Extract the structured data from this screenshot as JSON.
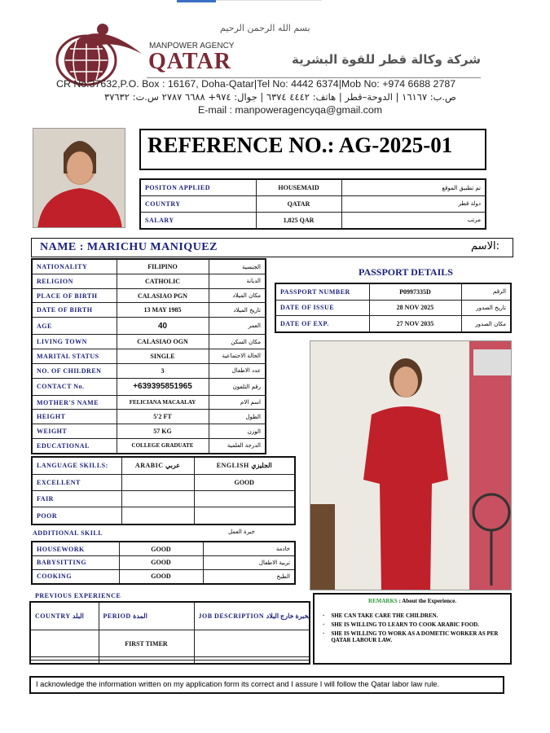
{
  "header": {
    "basmala": "بسم الله الرحمن الرحيم",
    "agency_small": "MANPOWER AGENCY",
    "agency_big": "QATAR",
    "agency_arabic": "شركة وكالة قطر للقوة البشرية",
    "contact_en": "CR No:37632,P.O. Box : 16167, Doha-Qatar|Tel No: 4442 6374|Mob No: +974 6688 2787",
    "contact_ar": "ص.ب: ١٦١٦٧ | الدوحة–قطر | هاتف: ٤٤٤٢ ٦٣٧٤ | جوال: ٩٧٤+ ٦٦٨٨ ٢٧٨٧ س.ت: ٣٧٦٣٢",
    "email": "E-mail : manpoweragencyqa@gmail.com",
    "brand_color": "#7a2a35"
  },
  "reference": "REFERENCE NO.: AG-2025-01",
  "position": [
    {
      "label": "POSITON APPLIED",
      "value": "HOUSEMAID",
      "ar": "تم تطبيق الموقع"
    },
    {
      "label": "COUNTRY",
      "value": "QATAR",
      "ar": "دولة قطر"
    },
    {
      "label": "SALARY",
      "value": "1,825 QAR",
      "ar": "مرتب"
    }
  ],
  "name": {
    "label": "NAME : MARICHU MANIQUEZ",
    "ar": "الاسم:"
  },
  "personal": [
    {
      "label": "NATIONALITY",
      "value": "FILIPINO",
      "ar": "الجنسية"
    },
    {
      "label": "RELIGION",
      "value": "CATHOLIC",
      "ar": "الديانة"
    },
    {
      "label": "PLACE OF BIRTH",
      "value": "CALASIAO PGN",
      "ar": "مكان الميلاد"
    },
    {
      "label": "DATE OF BIRTH",
      "value": "13 MAY 1985",
      "ar": "تاريخ الميلاد"
    },
    {
      "label": "AGE",
      "value": "40",
      "ar": "العمر"
    },
    {
      "label": "LIVING TOWN",
      "value": "CALASIAO OGN",
      "ar": "مكان السكن"
    },
    {
      "label": "MARITAL STATUS",
      "value": "SINGLE",
      "ar": "الحالة الاجتماعية"
    },
    {
      "label": "NO. OF CHILDREN",
      "value": "3",
      "ar": "عدد الاطفال"
    },
    {
      "label": "CONTACT No.",
      "value": "+639395851965",
      "ar": "رقم التلفون"
    },
    {
      "label": "MOTHER'S NAME",
      "value": "FELICIANA MACAALAY",
      "ar": "اسم الام"
    },
    {
      "label": "HEIGHT",
      "value": "5'2 FT",
      "ar": "الطول"
    },
    {
      "label": "WEIGHT",
      "value": "57 KG",
      "ar": "الوزن"
    },
    {
      "label": "EDUCATIONAL",
      "value": "COLLEGE GRADUATE",
      "ar": "الدرجة العلمية"
    }
  ],
  "passport": {
    "title": "PASSPORT DETAILS",
    "rows": [
      {
        "label": "PASSPORT NUMBER",
        "value": "P0997335D",
        "ar": "الرقم"
      },
      {
        "label": "DATE OF ISSUE",
        "value": "28 NOV 2025",
        "ar": "تاريخ الصدور"
      },
      {
        "label": "DATE OF EXP.",
        "value": "27 NOV 2035",
        "ar": "مكان الصدور"
      }
    ]
  },
  "language": {
    "header": {
      "label": "LANGUAGE SKILLS:",
      "arabic": "ARABIC عربي",
      "english": "ENGLISH الجليزي"
    },
    "rows": [
      {
        "label": "EXCELLENT",
        "arabic": "",
        "english": "GOOD"
      },
      {
        "label": "FAIR",
        "arabic": "",
        "english": ""
      },
      {
        "label": "POOR",
        "arabic": "",
        "english": ""
      }
    ]
  },
  "additional": {
    "label": "ADDITIONAL SKILL",
    "ar": "خبرة العمل",
    "rows": [
      {
        "label": "HOUSEWORK",
        "value": "GOOD",
        "ar": "خادمة"
      },
      {
        "label": "BABYSITTING",
        "value": "GOOD",
        "ar": "تربية الاطفال"
      },
      {
        "label": "COOKING",
        "value": "GOOD",
        "ar": "الطبخ"
      }
    ]
  },
  "experience": {
    "label": "PREVIOUS EXPERIENCE",
    "headers": [
      "COUNTRY البلد",
      "PERIOD المدة",
      "JOB DESCRIPTION الخبرة خارج البلاد"
    ],
    "rows": [
      [
        "",
        "FIRST TIMER",
        ""
      ],
      [
        "",
        "",
        ""
      ],
      [
        "",
        "",
        ""
      ]
    ]
  },
  "remarks": {
    "title": "REMARKS",
    "subtitle": ": About the Experience.",
    "items": [
      "SHE CAN TAKE CARE THE CHILDREN.",
      "SHE IS WILLING TO LEARN TO COOK ARABIC FOOD.",
      "SHE IS WILLING TO WORK AS A DOMETIC WORKER AS PER QATAR LABOUR LAW."
    ]
  },
  "acknowledgement": "I acknowledge the information written on my application form its correct and I assure I will follow the Qatar labor law rule."
}
